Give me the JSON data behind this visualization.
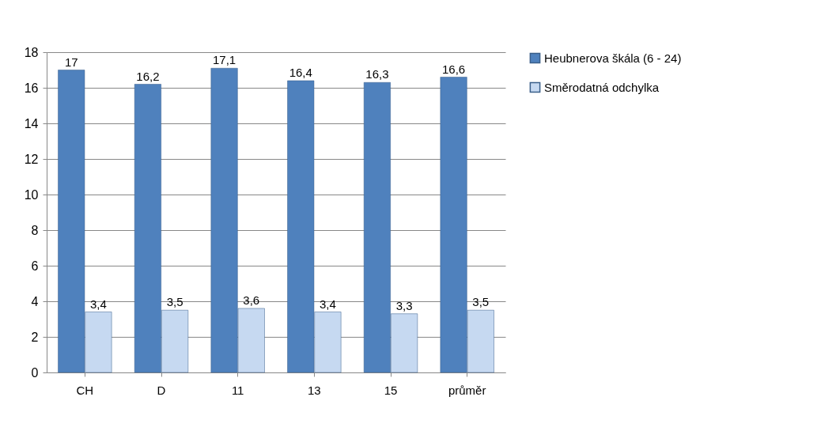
{
  "chart_data": {
    "type": "bar",
    "categories": [
      "CH",
      "D",
      "11",
      "13",
      "15",
      "průměr"
    ],
    "series": [
      {
        "name": "Heubnerova škála (6  - 24)",
        "color": "#4f81bd",
        "values": [
          17,
          16.2,
          17.1,
          16.4,
          16.3,
          16.6
        ],
        "value_labels": [
          "17",
          "16,2",
          "17,1",
          "16,4",
          "16,3",
          "16,6"
        ]
      },
      {
        "name": "Směrodatná odchylka",
        "color": "#c6d9f1",
        "values": [
          3.4,
          3.5,
          3.6,
          3.4,
          3.3,
          3.5
        ],
        "value_labels": [
          "3,4",
          "3,5",
          "3,6",
          "3,4",
          "3,3",
          "3,5"
        ]
      }
    ],
    "ylim": [
      0,
      18
    ],
    "yticks": [
      0,
      2,
      4,
      6,
      8,
      10,
      12,
      14,
      16,
      18
    ],
    "grid": "y",
    "legend": "right"
  }
}
